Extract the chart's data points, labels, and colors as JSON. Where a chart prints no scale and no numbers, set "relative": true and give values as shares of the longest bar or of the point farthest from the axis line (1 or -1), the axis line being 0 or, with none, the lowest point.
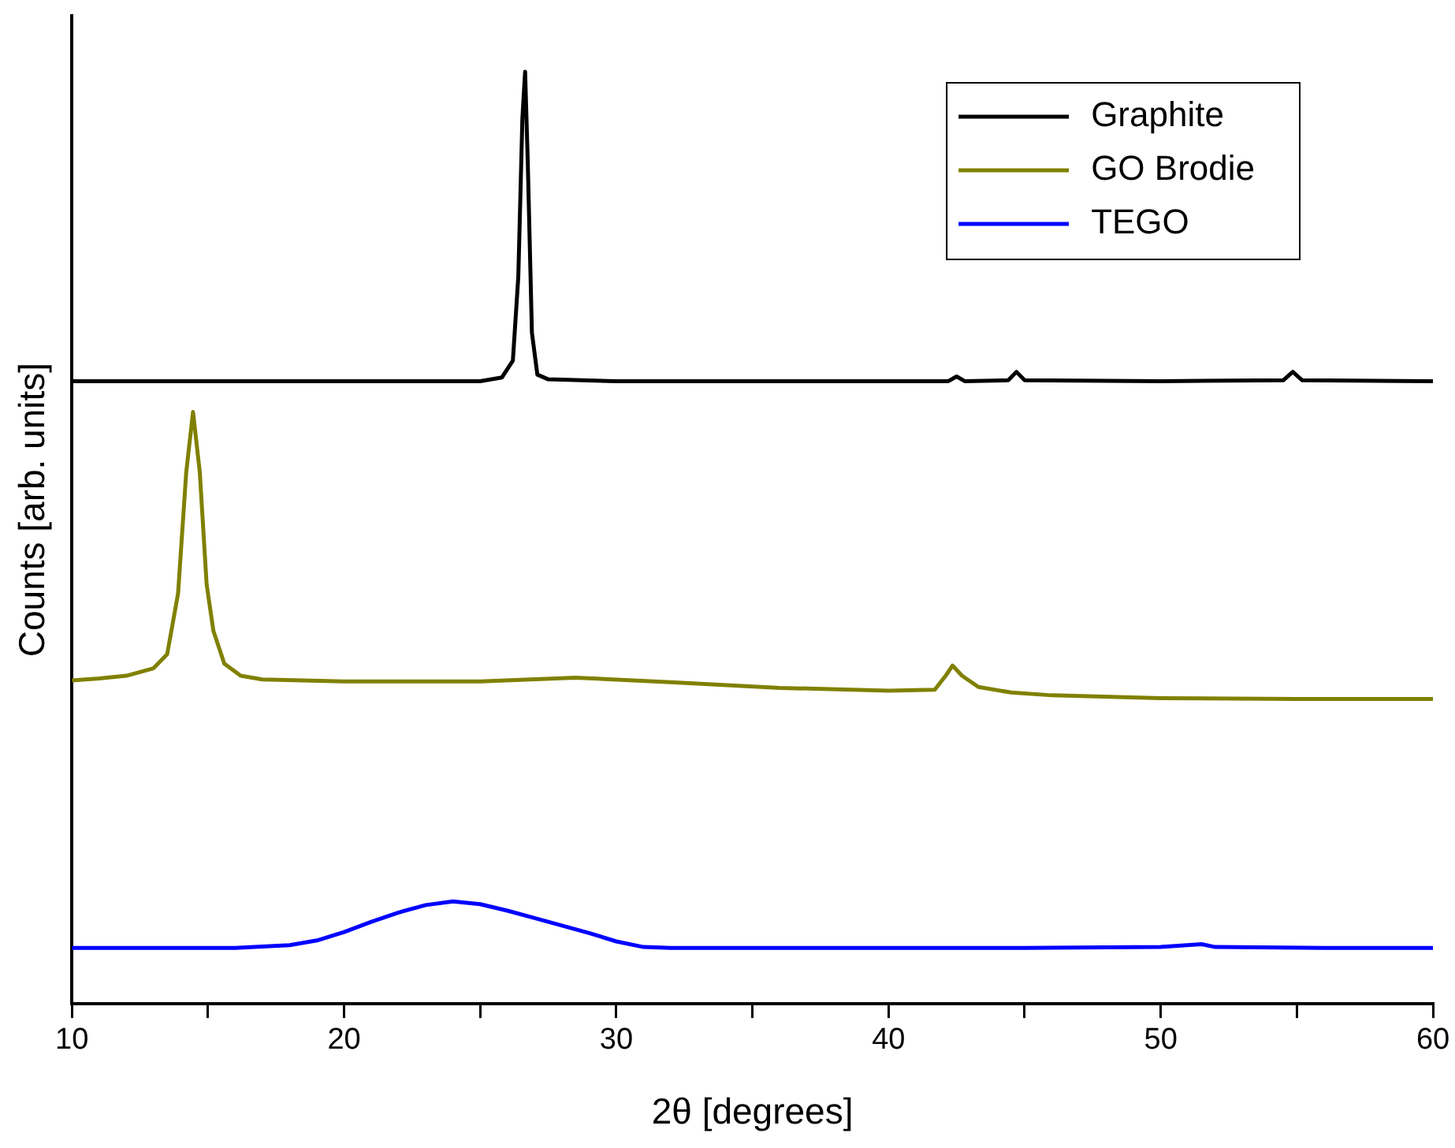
{
  "chart_data": {
    "type": "line",
    "relative": true,
    "xlabel": "2θ [degrees]",
    "ylabel": "Counts [arb. units]",
    "xlim": [
      10,
      60
    ],
    "xticks": [
      10,
      {
        "value": 15,
        "label": null
      },
      20,
      {
        "value": 25,
        "label": null
      },
      30,
      {
        "value": 35,
        "label": null
      },
      40,
      {
        "value": 45,
        "label": null
      },
      50,
      {
        "value": 55,
        "label": null
      },
      60
    ],
    "legend": "top right",
    "grid": false,
    "marker": "none",
    "line_style": "solid",
    "series": [
      {
        "name": "Graphite",
        "color": "#000000",
        "x": [
          10,
          15,
          20,
          25,
          25.8,
          26.2,
          26.4,
          26.55,
          26.65,
          26.75,
          26.9,
          27.1,
          27.5,
          30,
          35,
          40,
          42.2,
          42.5,
          42.8,
          44.4,
          44.7,
          45.0,
          50,
          54.5,
          54.85,
          55.2,
          60
        ],
        "values": [
          0.668,
          0.668,
          0.668,
          0.668,
          0.672,
          0.69,
          0.78,
          0.95,
          1.0,
          0.9,
          0.72,
          0.675,
          0.67,
          0.668,
          0.668,
          0.668,
          0.668,
          0.673,
          0.668,
          0.669,
          0.678,
          0.669,
          0.668,
          0.669,
          0.678,
          0.669,
          0.668
        ]
      },
      {
        "name": "GO Brodie",
        "color": "#808000",
        "x": [
          10,
          11,
          12,
          13,
          13.5,
          13.9,
          14.2,
          14.45,
          14.7,
          14.95,
          15.2,
          15.6,
          16.2,
          17,
          20,
          25,
          28.5,
          32,
          36,
          40,
          41.7,
          42.1,
          42.35,
          42.7,
          43.3,
          44.5,
          46,
          50,
          55,
          60
        ],
        "values": [
          0.347,
          0.349,
          0.352,
          0.36,
          0.375,
          0.44,
          0.57,
          0.635,
          0.57,
          0.45,
          0.4,
          0.365,
          0.352,
          0.348,
          0.346,
          0.346,
          0.35,
          0.345,
          0.339,
          0.336,
          0.337,
          0.352,
          0.363,
          0.352,
          0.34,
          0.334,
          0.331,
          0.328,
          0.327,
          0.327
        ]
      },
      {
        "name": "TEGO",
        "color": "#0000ff",
        "x": [
          10,
          14,
          16,
          18,
          19,
          20,
          21,
          22,
          23,
          24,
          25,
          26,
          27,
          28,
          29,
          30,
          31,
          32,
          36,
          40,
          45,
          50,
          51.5,
          52,
          56,
          60
        ],
        "values": [
          0.06,
          0.06,
          0.06,
          0.063,
          0.068,
          0.077,
          0.088,
          0.098,
          0.106,
          0.11,
          0.107,
          0.1,
          0.092,
          0.084,
          0.076,
          0.067,
          0.061,
          0.06,
          0.06,
          0.06,
          0.06,
          0.061,
          0.064,
          0.061,
          0.06,
          0.06
        ]
      }
    ]
  }
}
